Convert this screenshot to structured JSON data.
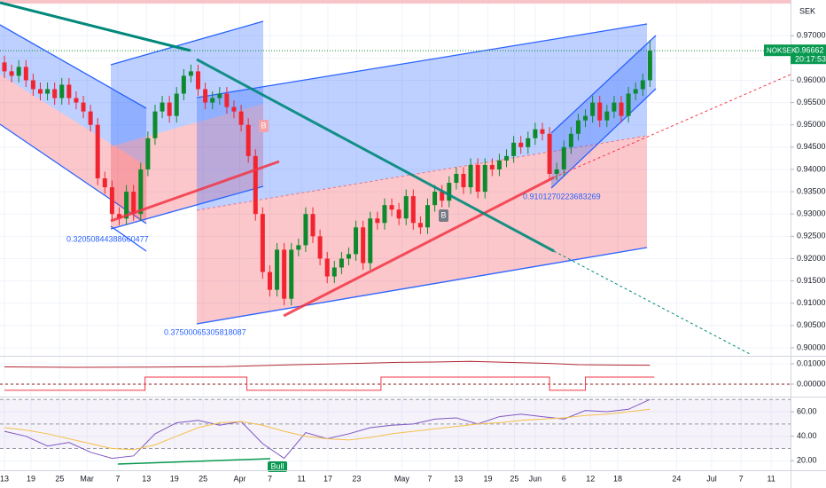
{
  "chart_data": [
    {
      "type": "candlestick",
      "symbol": "NOKSEK",
      "currency": "SEK",
      "last_price": {
        "value": 0.96662,
        "label": "0.96662"
      },
      "countdown": "20:17:53",
      "up_color": "#0e8a2c",
      "down_color": "#f2242f",
      "xlim": [
        -0.62,
        109.6
      ],
      "ylim": [
        0.8984,
        0.978
      ],
      "yticks": [
        {
          "value": 0.97,
          "label": "0.97000"
        },
        {
          "value": 0.965,
          "label": "0.96500"
        },
        {
          "value": 0.96,
          "label": "0.96000"
        },
        {
          "value": 0.955,
          "label": "0.95500"
        },
        {
          "value": 0.95,
          "label": "0.95000"
        },
        {
          "value": 0.945,
          "label": "0.94500"
        },
        {
          "value": 0.94,
          "label": "0.94000"
        },
        {
          "value": 0.935,
          "label": "0.93500"
        },
        {
          "value": 0.93,
          "label": "0.93000"
        },
        {
          "value": 0.925,
          "label": "0.92500"
        },
        {
          "value": 0.92,
          "label": "0.92000"
        },
        {
          "value": 0.915,
          "label": "0.91500"
        },
        {
          "value": 0.91,
          "label": "0.91000"
        },
        {
          "value": 0.905,
          "label": "0.90500"
        },
        {
          "value": 0.9,
          "label": "0.90000"
        }
      ],
      "annotations": [
        "0.32050844388660477",
        "0.37500065305818087",
        "0.9101270223683269"
      ],
      "markers": [
        "B",
        "B"
      ],
      "open": [
        0.964,
        0.962,
        0.961,
        0.963,
        0.96,
        0.958,
        0.957,
        0.958,
        0.956,
        0.959,
        0.956,
        0.955,
        0.953,
        0.95,
        0.938,
        0.936,
        0.93,
        0.929,
        0.935,
        0.93,
        0.94,
        0.947,
        0.953,
        0.955,
        0.952,
        0.957,
        0.961,
        0.962,
        0.958,
        0.955,
        0.956,
        0.957,
        0.954,
        0.953,
        0.95,
        0.943,
        0.93,
        0.917,
        0.913,
        0.922,
        0.911,
        0.922,
        0.923,
        0.93,
        0.925,
        0.92,
        0.916,
        0.918,
        0.92,
        0.921,
        0.927,
        0.919,
        0.929,
        0.928,
        0.932,
        0.931,
        0.929,
        0.934,
        0.928,
        0.927,
        0.932,
        0.935,
        0.933,
        0.937,
        0.939,
        0.936,
        0.941,
        0.935,
        0.941,
        0.94,
        0.942,
        0.943,
        0.946,
        0.945,
        0.947,
        0.949,
        0.948,
        0.939,
        0.94,
        0.945,
        0.948,
        0.951,
        0.952,
        0.955,
        0.951,
        0.953,
        0.955,
        0.952,
        0.957,
        0.958,
        0.96
      ],
      "high": [
        0.9655,
        0.9635,
        0.9645,
        0.9645,
        0.9615,
        0.9595,
        0.9595,
        0.9595,
        0.9605,
        0.9605,
        0.9575,
        0.9565,
        0.9545,
        0.9515,
        0.9395,
        0.9375,
        0.9315,
        0.9365,
        0.9365,
        0.9415,
        0.9485,
        0.9545,
        0.9565,
        0.9565,
        0.9585,
        0.9625,
        0.9635,
        0.9635,
        0.9595,
        0.9575,
        0.9585,
        0.9585,
        0.9555,
        0.9545,
        0.9515,
        0.9445,
        0.9315,
        0.9185,
        0.9235,
        0.9235,
        0.9235,
        0.9245,
        0.9315,
        0.9315,
        0.9265,
        0.9215,
        0.9195,
        0.9215,
        0.9225,
        0.9285,
        0.9285,
        0.9305,
        0.9305,
        0.9335,
        0.9335,
        0.9325,
        0.9355,
        0.9355,
        0.9295,
        0.9335,
        0.9365,
        0.9365,
        0.9385,
        0.9405,
        0.9405,
        0.9425,
        0.9425,
        0.9425,
        0.9425,
        0.9435,
        0.9445,
        0.9475,
        0.9475,
        0.9485,
        0.9505,
        0.9505,
        0.9495,
        0.9415,
        0.9465,
        0.9495,
        0.9525,
        0.9535,
        0.9565,
        0.9565,
        0.9545,
        0.9565,
        0.9565,
        0.9585,
        0.9595,
        0.9615,
        0.969
      ],
      "low": [
        0.9605,
        0.9595,
        0.9595,
        0.9585,
        0.9565,
        0.9555,
        0.9555,
        0.9545,
        0.9545,
        0.9545,
        0.9535,
        0.9515,
        0.9485,
        0.9365,
        0.9345,
        0.9285,
        0.9275,
        0.9275,
        0.9285,
        0.9285,
        0.9385,
        0.9455,
        0.9515,
        0.9505,
        0.9505,
        0.9555,
        0.9595,
        0.9565,
        0.9535,
        0.9535,
        0.9545,
        0.9525,
        0.9515,
        0.9485,
        0.9415,
        0.9285,
        0.9155,
        0.9115,
        0.9115,
        0.9095,
        0.9095,
        0.9205,
        0.9215,
        0.9235,
        0.9185,
        0.9145,
        0.9145,
        0.9165,
        0.9185,
        0.9195,
        0.9175,
        0.9175,
        0.9265,
        0.9265,
        0.9295,
        0.9275,
        0.9275,
        0.9265,
        0.9255,
        0.9255,
        0.9305,
        0.9315,
        0.9315,
        0.9355,
        0.9345,
        0.9345,
        0.9335,
        0.9335,
        0.9385,
        0.9385,
        0.9405,
        0.9415,
        0.9435,
        0.9435,
        0.9455,
        0.9465,
        0.9375,
        0.9375,
        0.9385,
        0.9435,
        0.9465,
        0.9495,
        0.9505,
        0.9495,
        0.9495,
        0.9515,
        0.9505,
        0.9505,
        0.9555,
        0.9565,
        0.9585
      ],
      "close": [
        0.962,
        0.961,
        0.963,
        0.96,
        0.958,
        0.957,
        0.958,
        0.956,
        0.959,
        0.956,
        0.955,
        0.953,
        0.95,
        0.938,
        0.936,
        0.93,
        0.929,
        0.935,
        0.93,
        0.94,
        0.947,
        0.953,
        0.955,
        0.952,
        0.957,
        0.961,
        0.962,
        0.958,
        0.955,
        0.956,
        0.957,
        0.954,
        0.953,
        0.95,
        0.943,
        0.93,
        0.917,
        0.913,
        0.922,
        0.911,
        0.922,
        0.923,
        0.93,
        0.925,
        0.92,
        0.916,
        0.918,
        0.92,
        0.921,
        0.927,
        0.919,
        0.929,
        0.928,
        0.932,
        0.931,
        0.929,
        0.934,
        0.928,
        0.927,
        0.932,
        0.935,
        0.933,
        0.937,
        0.939,
        0.936,
        0.941,
        0.935,
        0.941,
        0.94,
        0.942,
        0.943,
        0.946,
        0.945,
        0.947,
        0.949,
        0.948,
        0.939,
        0.94,
        0.945,
        0.948,
        0.951,
        0.952,
        0.955,
        0.951,
        0.953,
        0.955,
        0.952,
        0.957,
        0.958,
        0.96,
        0.96662
      ]
    },
    {
      "type": "line",
      "xlim": [
        -0.62,
        109.6
      ],
      "ylim": [
        -0.0061,
        0.0135
      ],
      "yticks": [
        {
          "value": 0.01,
          "label": "0.01000"
        },
        {
          "value": 0,
          "label": "0.00000"
        }
      ],
      "series": [
        {
          "color": "#b22833",
          "x": [
            0,
            10,
            20,
            30,
            40,
            50,
            55,
            60,
            65,
            70,
            75,
            80,
            85,
            90
          ],
          "values": [
            0.0085,
            0.0083,
            0.0084,
            0.0086,
            0.0095,
            0.0103,
            0.0107,
            0.0109,
            0.0112,
            0.0107,
            0.0103,
            0.0096,
            0.0094,
            0.0093
          ]
        },
        {
          "color": "#f23645",
          "step": true,
          "x": [
            0,
            19.6,
            33.8,
            52.5,
            76,
            81,
            90.6
          ],
          "values": [
            -0.003,
            0.0035,
            -0.003,
            0.0035,
            -0.003,
            0.0035,
            0.0035
          ]
        }
      ]
    },
    {
      "type": "line",
      "xlim": [
        -0.62,
        109.6
      ],
      "ylim": [
        12.3,
        71.6
      ],
      "yticks": [
        {
          "value": 60,
          "label": "60.00"
        },
        {
          "value": 40,
          "label": "40.00"
        },
        {
          "value": 20,
          "label": "20.00"
        }
      ],
      "levels": [
        70,
        50,
        30
      ],
      "markers": [
        "Bull"
      ],
      "xticks": [
        {
          "value": 0,
          "label": "13"
        },
        {
          "value": 3.7,
          "label": "19"
        },
        {
          "value": 7.7,
          "label": "25"
        },
        {
          "value": 11.5,
          "label": "Mar"
        },
        {
          "value": 15.8,
          "label": "7"
        },
        {
          "value": 19.8,
          "label": "13"
        },
        {
          "value": 23.7,
          "label": "19"
        },
        {
          "value": 27.7,
          "label": "25"
        },
        {
          "value": 32.8,
          "label": "Apr"
        },
        {
          "value": 37,
          "label": "7"
        },
        {
          "value": 41.4,
          "label": "11"
        },
        {
          "value": 45.1,
          "label": "17"
        },
        {
          "value": 49.1,
          "label": "23"
        },
        {
          "value": 55.4,
          "label": "May"
        },
        {
          "value": 59.3,
          "label": "7"
        },
        {
          "value": 63.3,
          "label": "13"
        },
        {
          "value": 67.4,
          "label": "19"
        },
        {
          "value": 71.1,
          "label": "25"
        },
        {
          "value": 74,
          "label": "Jun"
        },
        {
          "value": 78,
          "label": "6"
        },
        {
          "value": 81.7,
          "label": "12"
        },
        {
          "value": 85.5,
          "label": "18"
        },
        {
          "value": 93.7,
          "label": "24"
        },
        {
          "value": 98.6,
          "label": "Jul"
        },
        {
          "value": 102.7,
          "label": "7"
        },
        {
          "value": 106.9,
          "label": "11"
        }
      ],
      "series": [
        {
          "color": "#7e57c2",
          "x": [
            0,
            3,
            6,
            9,
            12,
            15,
            18,
            21,
            24,
            27,
            30,
            33,
            36,
            39,
            42,
            45,
            48,
            51,
            54,
            57,
            60,
            63,
            66,
            69,
            72,
            75,
            78,
            81,
            84,
            87,
            90
          ],
          "values": [
            44,
            40,
            32,
            35,
            27,
            22,
            24,
            42,
            51,
            53,
            49,
            52,
            34,
            22,
            43,
            38,
            42,
            47,
            49,
            50,
            54,
            55,
            50,
            56,
            58,
            56,
            54,
            61,
            60,
            62,
            70
          ]
        },
        {
          "color": "#f5c04a",
          "x": [
            0,
            3,
            6,
            9,
            12,
            15,
            18,
            21,
            24,
            27,
            30,
            33,
            36,
            39,
            42,
            45,
            48,
            51,
            54,
            57,
            60,
            63,
            66,
            69,
            72,
            75,
            78,
            81,
            84,
            87,
            90
          ],
          "values": [
            47,
            45,
            42,
            38,
            34,
            30,
            29,
            33,
            40,
            47,
            51,
            52,
            49,
            44,
            40,
            38,
            37,
            39,
            42,
            44,
            46,
            48,
            50,
            51,
            53,
            54,
            55,
            57,
            58,
            60,
            62
          ]
        }
      ]
    }
  ]
}
